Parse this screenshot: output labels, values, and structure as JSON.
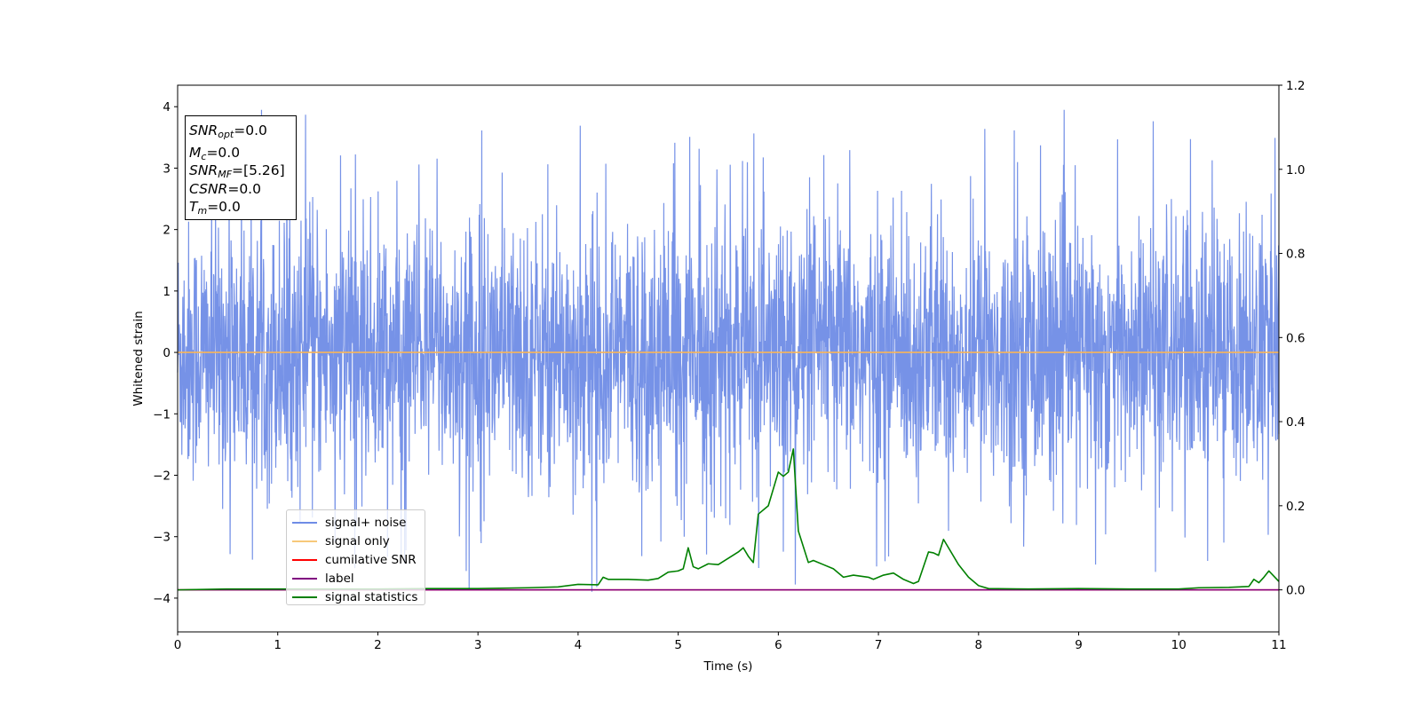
{
  "chart_data": {
    "type": "line",
    "xlabel": "Time (s)",
    "ylabel": "Whitened strain",
    "x_ticks": [
      "0",
      "1",
      "2",
      "3",
      "4",
      "5",
      "6",
      "7",
      "8",
      "9",
      "10",
      "11"
    ],
    "y_ticks": [
      "−4",
      "−3",
      "−2",
      "−1",
      "0",
      "1",
      "2",
      "3",
      "4"
    ],
    "y2_ticks": [
      "0.0",
      "0.2",
      "0.4",
      "0.6",
      "0.8",
      "1.0",
      "1.2"
    ],
    "xlim": [
      0,
      11
    ],
    "ylim": [
      -4.55,
      4.35
    ],
    "y2lim": [
      -0.1,
      1.2
    ],
    "legend_position": "lower-left",
    "series": [
      {
        "name": "signal+ noise",
        "color": "#6f8ce6",
        "axis": "left",
        "kind": "noise",
        "description_values": {
          "band_min": -2.0,
          "band_max": 2.3,
          "peak_max": 3.95,
          "peak_min": -4.15
        }
      },
      {
        "name": "signal only",
        "color": "#f7b55a",
        "axis": "left",
        "x": [
          0,
          11
        ],
        "y": [
          0,
          0
        ]
      },
      {
        "name": "cumilative SNR",
        "color": "#ff0000",
        "axis": "right",
        "x": [
          0,
          11
        ],
        "y": [
          0,
          0
        ]
      },
      {
        "name": "label",
        "color": "#800080",
        "axis": "right",
        "x": [
          0,
          11
        ],
        "y": [
          0,
          0
        ]
      },
      {
        "name": "signal statistics",
        "color": "#008000",
        "axis": "right",
        "x": [
          0,
          0.5,
          1,
          1.5,
          2,
          2.5,
          3,
          3.5,
          3.8,
          4,
          4.2,
          4.25,
          4.3,
          4.5,
          4.7,
          4.8,
          4.9,
          5,
          5.05,
          5.1,
          5.15,
          5.2,
          5.3,
          5.4,
          5.5,
          5.6,
          5.65,
          5.7,
          5.75,
          5.8,
          5.9,
          6,
          6.05,
          6.1,
          6.15,
          6.2,
          6.3,
          6.35,
          6.45,
          6.55,
          6.65,
          6.75,
          6.9,
          6.95,
          7.05,
          7.15,
          7.25,
          7.3,
          7.35,
          7.4,
          7.5,
          7.55,
          7.6,
          7.65,
          7.8,
          7.9,
          8,
          8.1,
          8.5,
          9,
          9.5,
          10,
          10.2,
          10.5,
          10.7,
          10.75,
          10.8,
          10.85,
          10.9,
          11
        ],
        "y": [
          0,
          0.002,
          0.002,
          0.002,
          0.002,
          0.003,
          0.003,
          0.005,
          0.007,
          0.013,
          0.012,
          0.03,
          0.025,
          0.025,
          0.023,
          0.027,
          0.042,
          0.045,
          0.05,
          0.1,
          0.055,
          0.05,
          0.062,
          0.06,
          0.075,
          0.09,
          0.1,
          0.08,
          0.065,
          0.18,
          0.2,
          0.28,
          0.27,
          0.28,
          0.335,
          0.14,
          0.065,
          0.07,
          0.06,
          0.05,
          0.03,
          0.035,
          0.03,
          0.025,
          0.035,
          0.04,
          0.025,
          0.02,
          0.015,
          0.02,
          0.09,
          0.088,
          0.082,
          0.12,
          0.06,
          0.03,
          0.01,
          0.003,
          0.002,
          0.003,
          0.002,
          0.002,
          0.005,
          0.006,
          0.008,
          0.025,
          0.017,
          0.03,
          0.045,
          0.02
        ]
      }
    ]
  },
  "info_box": {
    "snr_opt_label": "SNR",
    "snr_opt_sub": "opt",
    "snr_opt_value": "=0.0",
    "mc_label": "M",
    "mc_sub": "c",
    "mc_value": "=0.0",
    "snr_mf_label": "SNR",
    "snr_mf_sub": "MF",
    "snr_mf_value": "=[5.26]",
    "csnr_label": "CSNR",
    "csnr_value": "=0.0",
    "tm_label": "T",
    "tm_sub": "m",
    "tm_value": "=0.0"
  }
}
